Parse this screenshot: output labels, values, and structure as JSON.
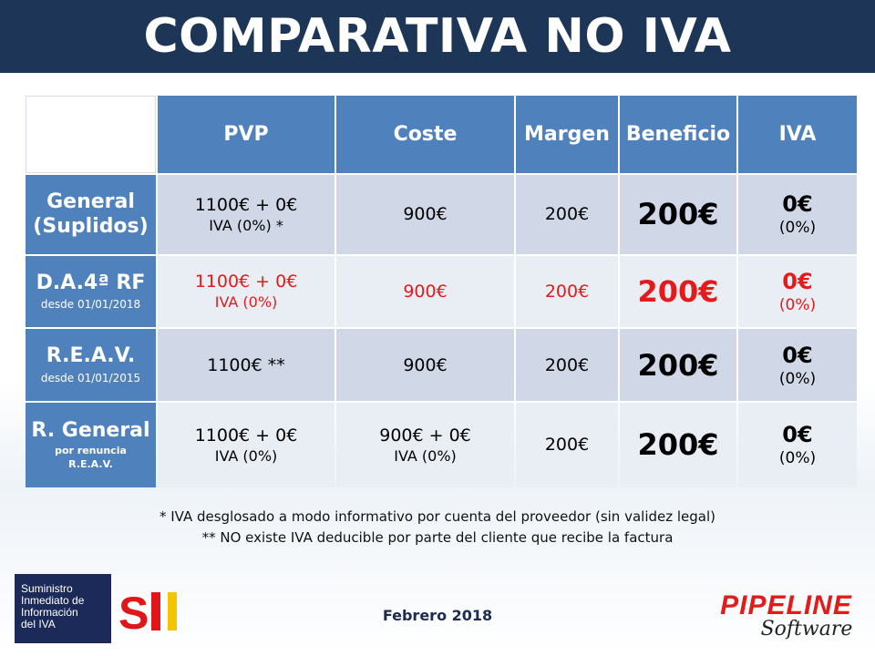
{
  "title": "COMPARATIVA NO IVA",
  "table": {
    "headers": [
      "PVP",
      "Coste",
      "Margen",
      "Beneficio",
      "IVA"
    ],
    "rows": [
      {
        "label": "General (Suplidos)",
        "label_line1": "General",
        "label_line2": "(Suplidos)",
        "sublabel": "",
        "pvp": "1100€ + 0€",
        "pvp_sub": "IVA (0%) *",
        "coste": "900€",
        "coste_sub": "",
        "margen": "200€",
        "beneficio": "200€",
        "iva": "0€",
        "iva_sub": "(0%)",
        "highlight": false
      },
      {
        "label_line1": "D.A.4ª RF",
        "sublabel": "desde 01/01/2018",
        "pvp": "1100€ + 0€",
        "pvp_sub": "IVA (0%)",
        "coste": "900€",
        "margen": "200€",
        "beneficio": "200€",
        "iva": "0€",
        "iva_sub": "(0%)",
        "highlight": true
      },
      {
        "label_line1": "R.E.A.V.",
        "sublabel": "desde 01/01/2015",
        "pvp": "1100€ **",
        "coste": "900€",
        "margen": "200€",
        "beneficio": "200€",
        "iva": "0€",
        "iva_sub": "(0%)",
        "highlight": false
      },
      {
        "label_line1": "R. General",
        "sublabel_line1": "por renuncia",
        "sublabel_line2": "R.E.A.V.",
        "pvp": "1100€ + 0€",
        "pvp_sub": "IVA (0%)",
        "coste": "900€ + 0€",
        "coste_sub": "IVA (0%)",
        "margen": "200€",
        "beneficio": "200€",
        "iva": "0€",
        "iva_sub": "(0%)",
        "highlight": false
      }
    ]
  },
  "notes": [
    "* IVA desglosado a modo informativo por cuenta del proveedor (sin validez legal)",
    "** NO existe IVA deducible por parte del cliente que recibe la factura"
  ],
  "sii_logo": {
    "lines": [
      "Suministro",
      "Inmediato de",
      "Información",
      "del IVA"
    ],
    "mark": "SII"
  },
  "fecha": "Febrero 2018",
  "pipeline_logo": {
    "brand": "PIPELINE",
    "tagline": "Software"
  },
  "colors": {
    "header_bar": "#1d3557",
    "table_header": "#4f81bd",
    "row_dark": "#d0d8e8",
    "row_light": "#e9edf4",
    "highlight_red": "#e31b1b"
  }
}
